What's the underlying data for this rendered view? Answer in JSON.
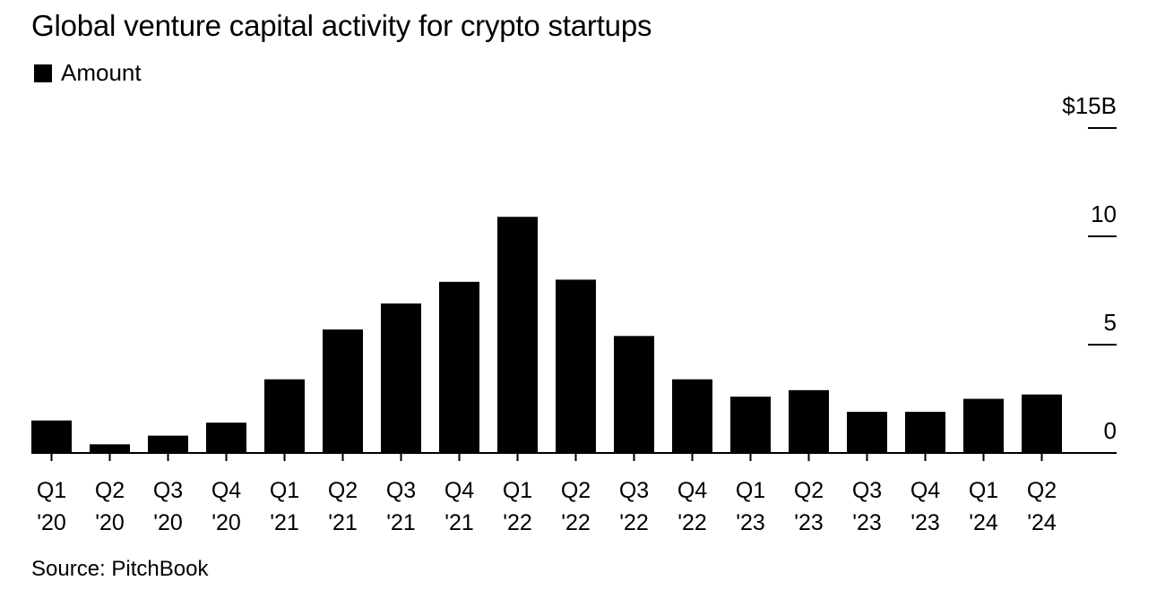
{
  "chart_data": {
    "type": "bar",
    "title": "Global venture capital activity for crypto startups",
    "legend": [
      {
        "label": "Amount",
        "color": "#000000"
      }
    ],
    "categories": [
      [
        "Q1",
        "'20"
      ],
      [
        "Q2",
        "'20"
      ],
      [
        "Q3",
        "'20"
      ],
      [
        "Q4",
        "'20"
      ],
      [
        "Q1",
        "'21"
      ],
      [
        "Q2",
        "'21"
      ],
      [
        "Q3",
        "'21"
      ],
      [
        "Q4",
        "'21"
      ],
      [
        "Q1",
        "'22"
      ],
      [
        "Q2",
        "'22"
      ],
      [
        "Q3",
        "'22"
      ],
      [
        "Q4",
        "'22"
      ],
      [
        "Q1",
        "'23"
      ],
      [
        "Q2",
        "'23"
      ],
      [
        "Q3",
        "'23"
      ],
      [
        "Q4",
        "'23"
      ],
      [
        "Q1",
        "'24"
      ],
      [
        "Q2",
        "'24"
      ]
    ],
    "series": [
      {
        "name": "Amount",
        "unit": "$B",
        "values": [
          1.5,
          0.4,
          0.8,
          1.4,
          3.4,
          5.7,
          6.9,
          7.9,
          10.9,
          8.0,
          5.4,
          3.4,
          2.6,
          2.9,
          1.9,
          1.9,
          2.5,
          2.7
        ]
      }
    ],
    "y_axis": {
      "min": 0,
      "max": 15,
      "ticks": [
        0,
        5,
        10,
        15
      ],
      "tick_labels": [
        "0",
        "5",
        "10",
        "$15B"
      ],
      "position": "right"
    },
    "source": "Source: PitchBook",
    "bar_color": "#000000"
  }
}
